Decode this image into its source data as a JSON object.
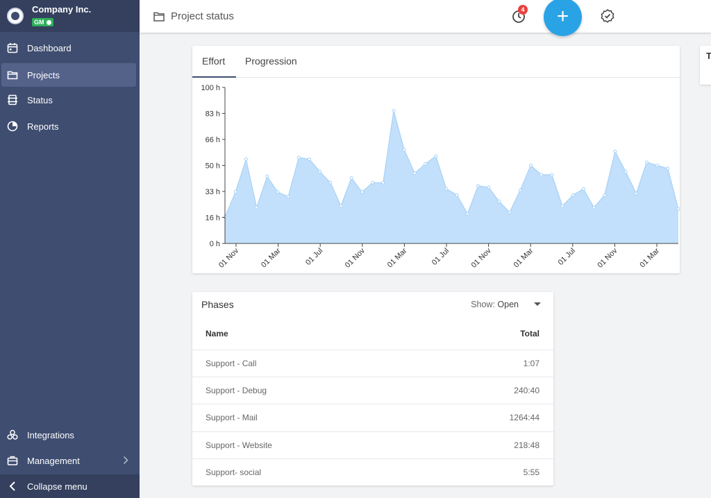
{
  "sidebar": {
    "company": "Company Inc.",
    "badge": "GM",
    "items": [
      {
        "label": "Dashboard",
        "icon": "calendar-icon"
      },
      {
        "label": "Projects",
        "icon": "folder-icon"
      },
      {
        "label": "Status",
        "icon": "status-icon"
      },
      {
        "label": "Reports",
        "icon": "pie-chart-icon"
      }
    ],
    "bottom_items": [
      {
        "label": "Integrations",
        "icon": "integrations-icon"
      },
      {
        "label": "Management",
        "icon": "briefcase-icon"
      }
    ],
    "collapse_label": "Collapse menu"
  },
  "header": {
    "title": "Project status",
    "notification_count": "4",
    "add_label": "+"
  },
  "chart_tabs": [
    "Effort",
    "Progression"
  ],
  "right_card_initial": "T",
  "chart_data": {
    "type": "area",
    "y_ticks": [
      "0 h",
      "16 h",
      "33 h",
      "50 h",
      "66 h",
      "83 h",
      "100 h"
    ],
    "ylim": [
      0,
      100
    ],
    "x_ticks": [
      "01 Nov",
      "01 Mar",
      "01 Jul",
      "01 Nov",
      "01 Mar",
      "01 Jul",
      "01 Nov",
      "01 Mar",
      "01 Jul",
      "01 Nov",
      "01 Mar"
    ],
    "values": [
      17,
      33,
      54,
      23,
      43,
      33,
      30,
      55,
      54,
      46,
      39,
      24,
      42,
      33,
      39,
      39,
      85,
      60,
      45,
      51,
      56,
      35,
      31,
      19,
      37,
      36,
      27,
      20,
      34,
      50,
      44,
      44,
      24,
      31,
      35,
      23,
      31,
      59,
      46,
      32,
      52,
      50,
      48,
      22
    ],
    "color": "#c2e0fb",
    "line_color": "#a9d1f7"
  },
  "phases": {
    "title": "Phases",
    "show_label": "Show:",
    "show_value": "Open",
    "columns": [
      "Name",
      "Total"
    ],
    "rows": [
      {
        "name": "Support - Call",
        "total": "1:07"
      },
      {
        "name": "Support - Debug",
        "total": "240:40"
      },
      {
        "name": "Support - Mail",
        "total": "1264:44"
      },
      {
        "name": "Support - Website",
        "total": "218:48"
      },
      {
        "name": "Support- social",
        "total": "5:55"
      }
    ]
  }
}
